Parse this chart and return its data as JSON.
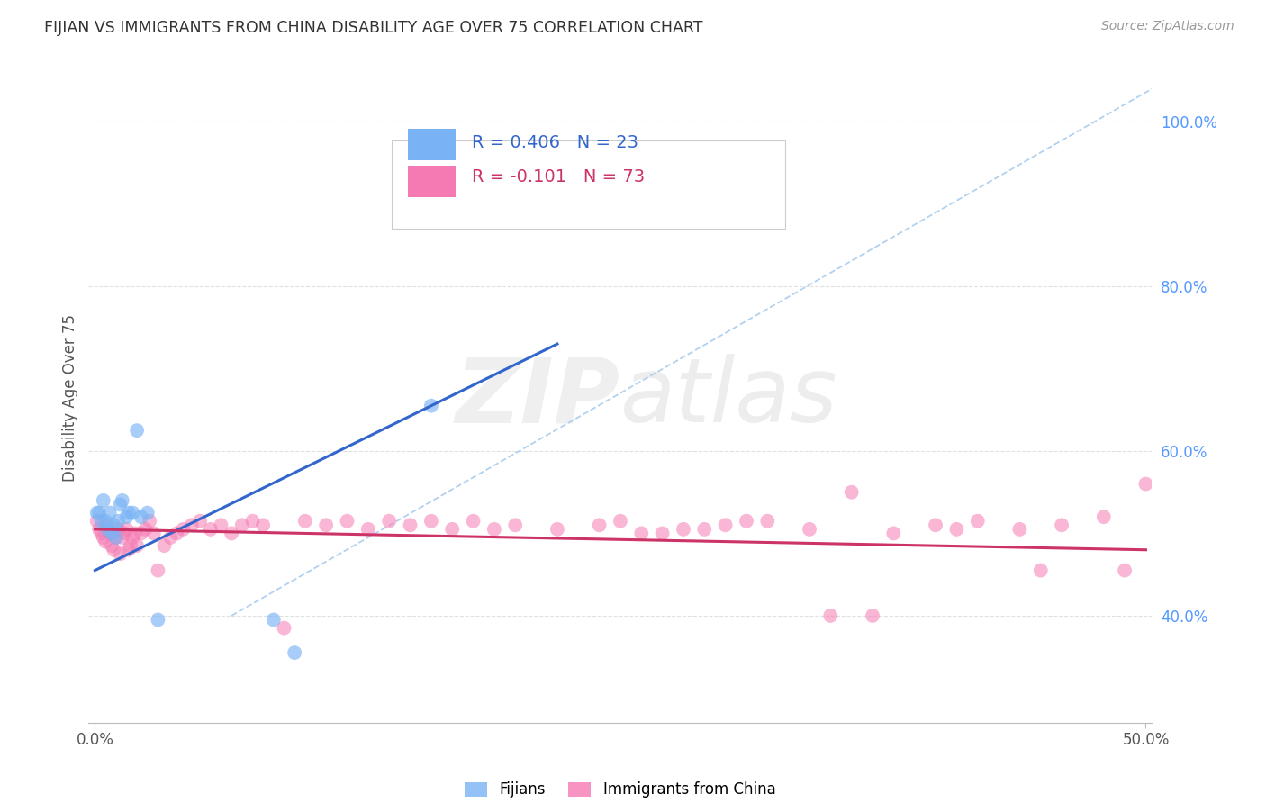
{
  "title": "FIJIAN VS IMMIGRANTS FROM CHINA DISABILITY AGE OVER 75 CORRELATION CHART",
  "source": "Source: ZipAtlas.com",
  "ylabel": "Disability Age Over 75",
  "background_color": "#ffffff",
  "watermark_text": "ZIPatlas",
  "fijian_color": "#7ab3f5",
  "china_color": "#f57ab3",
  "fijian_line_color": "#3366cc",
  "china_line_color": "#cc3366",
  "diag_color": "#aaccee",
  "ytick_color": "#5599ff",
  "fijian_r": "0.406",
  "fijian_n": "23",
  "china_r": "-0.101",
  "china_n": "73",
  "xlim": [
    -0.003,
    0.503
  ],
  "ylim": [
    0.27,
    1.06
  ],
  "fijian_x": [
    0.001,
    0.002,
    0.003,
    0.004,
    0.005,
    0.006,
    0.007,
    0.008,
    0.009,
    0.01,
    0.011,
    0.012,
    0.013,
    0.015,
    0.016,
    0.018,
    0.02,
    0.022,
    0.025,
    0.085,
    0.095,
    0.16,
    0.03
  ],
  "fijian_y": [
    0.525,
    0.525,
    0.515,
    0.54,
    0.515,
    0.505,
    0.525,
    0.5,
    0.51,
    0.495,
    0.515,
    0.535,
    0.54,
    0.52,
    0.525,
    0.525,
    0.625,
    0.52,
    0.525,
    0.395,
    0.355,
    0.655,
    0.395
  ],
  "china_x": [
    0.001,
    0.002,
    0.003,
    0.004,
    0.005,
    0.006,
    0.007,
    0.008,
    0.009,
    0.01,
    0.011,
    0.012,
    0.013,
    0.014,
    0.015,
    0.016,
    0.017,
    0.018,
    0.019,
    0.02,
    0.022,
    0.024,
    0.026,
    0.028,
    0.03,
    0.033,
    0.036,
    0.039,
    0.042,
    0.046,
    0.05,
    0.055,
    0.06,
    0.065,
    0.07,
    0.075,
    0.08,
    0.09,
    0.1,
    0.11,
    0.12,
    0.13,
    0.14,
    0.15,
    0.16,
    0.17,
    0.18,
    0.19,
    0.2,
    0.22,
    0.24,
    0.26,
    0.28,
    0.3,
    0.32,
    0.34,
    0.36,
    0.38,
    0.4,
    0.42,
    0.44,
    0.46,
    0.48,
    0.49,
    0.5,
    0.25,
    0.27,
    0.29,
    0.31,
    0.35,
    0.37,
    0.41,
    0.45
  ],
  "china_y": [
    0.515,
    0.505,
    0.5,
    0.495,
    0.49,
    0.51,
    0.5,
    0.485,
    0.48,
    0.495,
    0.505,
    0.475,
    0.495,
    0.5,
    0.505,
    0.48,
    0.485,
    0.495,
    0.5,
    0.485,
    0.5,
    0.505,
    0.515,
    0.5,
    0.455,
    0.485,
    0.495,
    0.5,
    0.505,
    0.51,
    0.515,
    0.505,
    0.51,
    0.5,
    0.51,
    0.515,
    0.51,
    0.385,
    0.515,
    0.51,
    0.515,
    0.505,
    0.515,
    0.51,
    0.515,
    0.505,
    0.515,
    0.505,
    0.51,
    0.505,
    0.51,
    0.5,
    0.505,
    0.51,
    0.515,
    0.505,
    0.55,
    0.5,
    0.51,
    0.515,
    0.505,
    0.51,
    0.52,
    0.455,
    0.56,
    0.515,
    0.5,
    0.505,
    0.515,
    0.4,
    0.4,
    0.505,
    0.455
  ],
  "fij_line_x": [
    0.0,
    0.22
  ],
  "fij_line_y": [
    0.455,
    0.73
  ],
  "chi_line_x": [
    0.0,
    0.5
  ],
  "chi_line_y": [
    0.505,
    0.48
  ],
  "diag_line_x": [
    0.065,
    0.503
  ],
  "diag_line_y": [
    0.4,
    1.04
  ],
  "yticks": [
    0.4,
    0.6,
    0.8,
    1.0
  ],
  "ytick_labels": [
    "40.0%",
    "60.0%",
    "80.0%",
    "100.0%"
  ],
  "xtick_positions": [
    0.0,
    0.5
  ],
  "xtick_labels": [
    "0.0%",
    "50.0%"
  ]
}
